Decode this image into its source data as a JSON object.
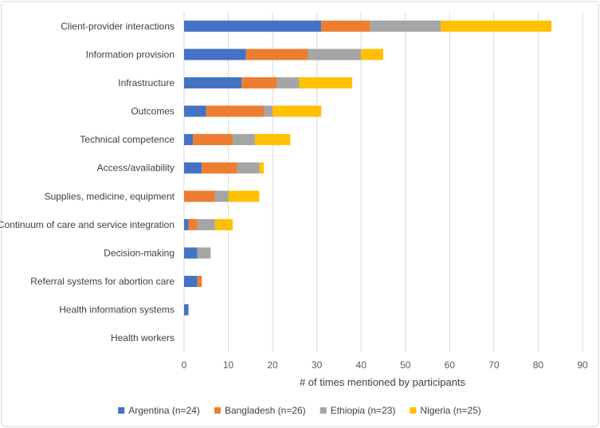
{
  "chart_data": {
    "type": "bar",
    "orientation": "horizontal",
    "stacked": true,
    "categories": [
      "Client-provider interactions",
      "Information provision",
      "Infrastructure",
      "Outcomes",
      "Technical competence",
      "Access/availability",
      "Supplies, medicine, equipment",
      "Continuum of care and service integration",
      "Decision-making",
      "Referral systems for abortion care",
      "Health information systems",
      "Health workers"
    ],
    "series": [
      {
        "name": "Argentina (n=24)",
        "color": "#4472c4",
        "values": [
          31,
          14,
          13,
          5,
          2,
          4,
          0,
          1,
          3,
          3,
          1,
          0
        ]
      },
      {
        "name": "Bangladesh (n=26)",
        "color": "#ed7d31",
        "values": [
          11,
          14,
          8,
          13,
          9,
          8,
          7,
          2,
          0,
          1,
          0,
          0
        ]
      },
      {
        "name": "Ethiopia (n=23)",
        "color": "#a5a5a5",
        "values": [
          16,
          12,
          5,
          2,
          5,
          5,
          3,
          4,
          3,
          0,
          0,
          0
        ]
      },
      {
        "name": "Nigeria (n=25)",
        "color": "#ffc000",
        "values": [
          25,
          5,
          12,
          11,
          8,
          1,
          7,
          4,
          0,
          0,
          0,
          0
        ]
      }
    ],
    "title": "",
    "xlabel": "# of times mentioned by participants",
    "ylabel": "",
    "xlim": [
      0,
      90
    ],
    "xticks": [
      0,
      10,
      20,
      30,
      40,
      50,
      60,
      70,
      80,
      90
    ],
    "grid": "vertical",
    "legend": "bottom"
  }
}
